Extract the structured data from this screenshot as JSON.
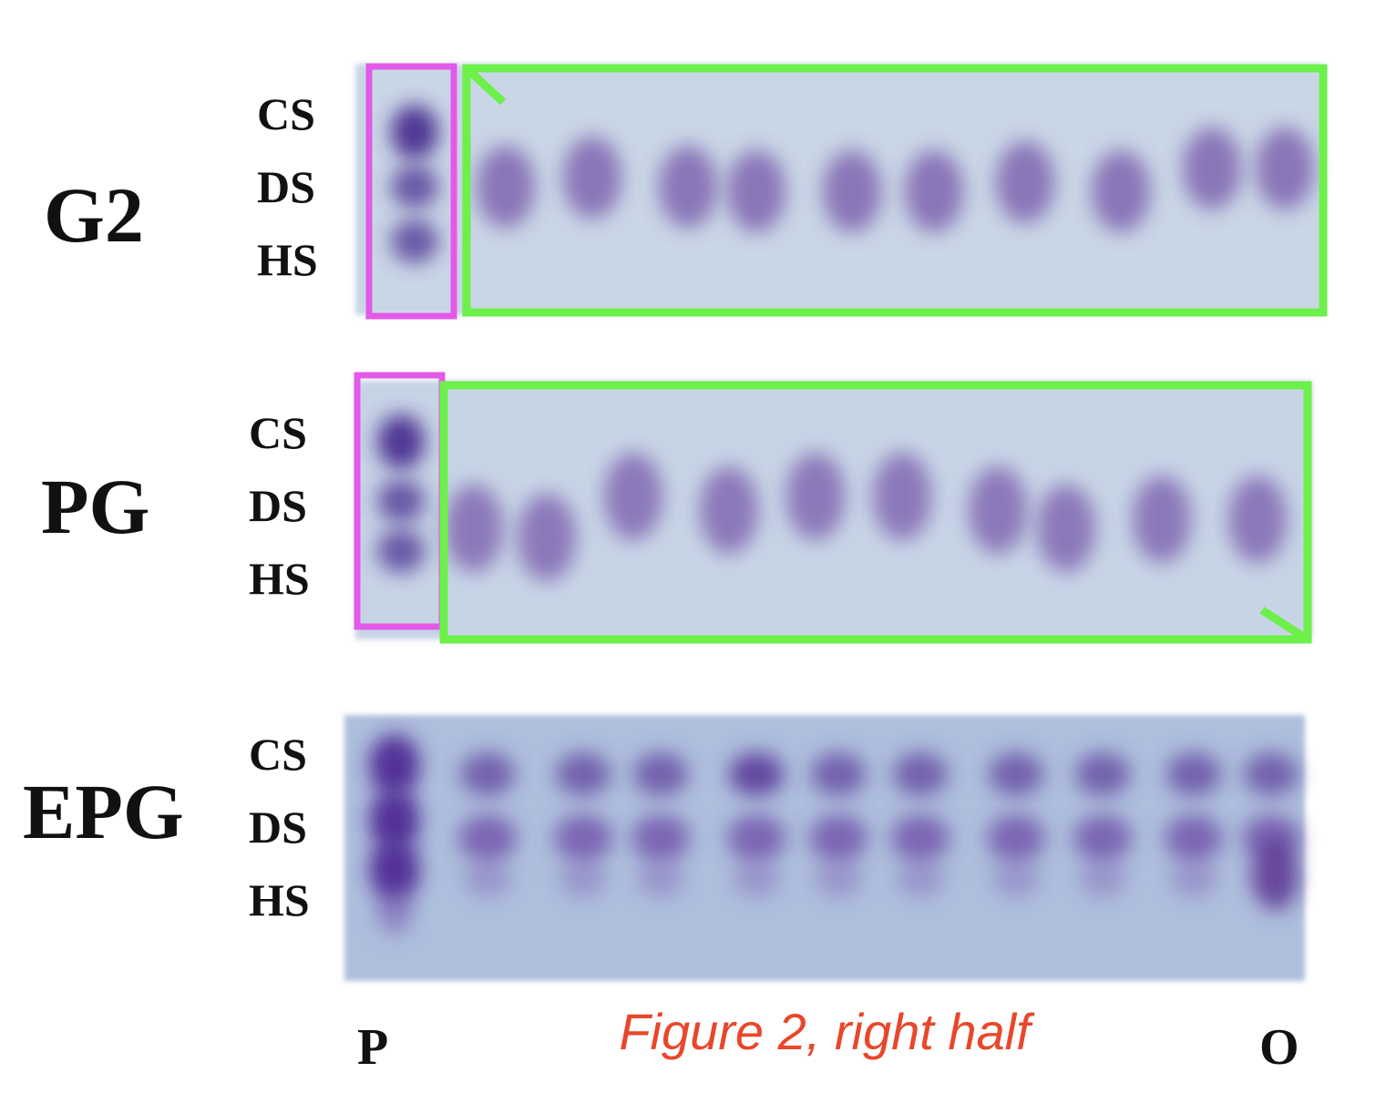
{
  "panels": [
    {
      "label": "G2",
      "bands": [
        "CS",
        "DS",
        "HS"
      ]
    },
    {
      "label": "PG",
      "bands": [
        "CS",
        "DS",
        "HS"
      ]
    },
    {
      "label": "EPG",
      "bands": [
        "CS",
        "DS",
        "HS"
      ]
    }
  ],
  "lanes": {
    "first": "P",
    "last": "O"
  },
  "caption": "Figure 2, right half"
}
